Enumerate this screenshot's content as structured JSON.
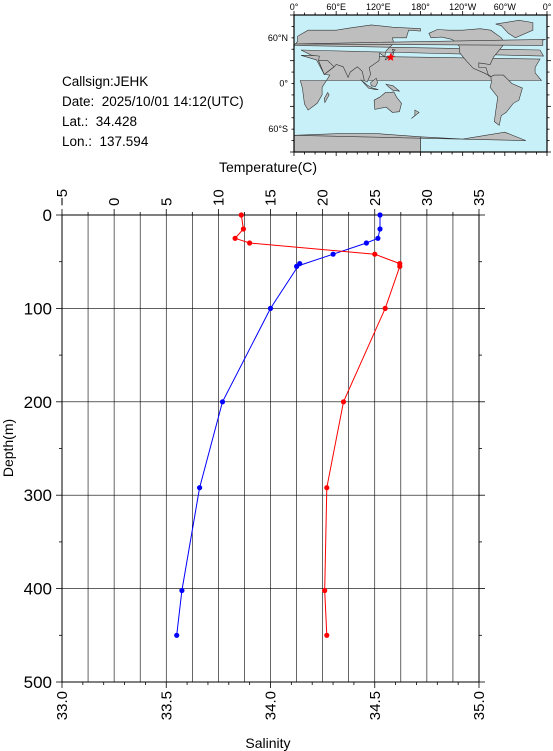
{
  "station": {
    "callsign": "Callsign:JEHK",
    "date": "Date:  2025/10/01 14:12(UTC)",
    "lat": "Lat.:  34.428",
    "lon": "Lon.:  137.594"
  },
  "map": {
    "top_labels": [
      "0°",
      "60°E",
      "120°E",
      "180°",
      "120°W",
      "60°W",
      "0°"
    ],
    "left_labels": [
      "60°N",
      "0°",
      "60°S"
    ],
    "ocean_color": "#c8f0f8",
    "land_color": "#bebebe",
    "marker_color": "#ff0000",
    "marker_lon": 137.594,
    "marker_lat": 34.428
  },
  "chart_data": {
    "type": "line",
    "ylabel": "Depth(m)",
    "ylim": [
      0,
      500
    ],
    "yticks": [
      "0",
      "100",
      "200",
      "300",
      "400",
      "500"
    ],
    "top_axis": {
      "label": "Temperature(C)",
      "range": [
        -5,
        35
      ],
      "ticks": [
        "−5",
        "0",
        "5",
        "10",
        "15",
        "20",
        "25",
        "30",
        "35"
      ]
    },
    "bottom_axis": {
      "label": "Salinity",
      "range": [
        33.0,
        35.0
      ],
      "ticks": [
        "33.0",
        "33.5",
        "34.0",
        "34.5",
        "35.0"
      ]
    },
    "grid": true,
    "series": [
      {
        "axis": "temperature",
        "color": "#0000ff",
        "depth": [
          0,
          15,
          25,
          30,
          42,
          55,
          52,
          100,
          200,
          292,
          402,
          450
        ],
        "values": [
          25.5,
          25.5,
          25.3,
          24.2,
          21.0,
          17.5,
          17.8,
          15.0,
          10.4,
          8.2,
          6.5,
          6.0
        ]
      },
      {
        "axis": "salinity",
        "color": "#ff0000",
        "depth": [
          0,
          15,
          25,
          30,
          42,
          52,
          55,
          100,
          200,
          292,
          402,
          450
        ],
        "values": [
          33.86,
          33.87,
          33.83,
          33.9,
          34.5,
          34.62,
          34.62,
          34.55,
          34.35,
          34.27,
          34.26,
          34.27
        ]
      }
    ]
  }
}
